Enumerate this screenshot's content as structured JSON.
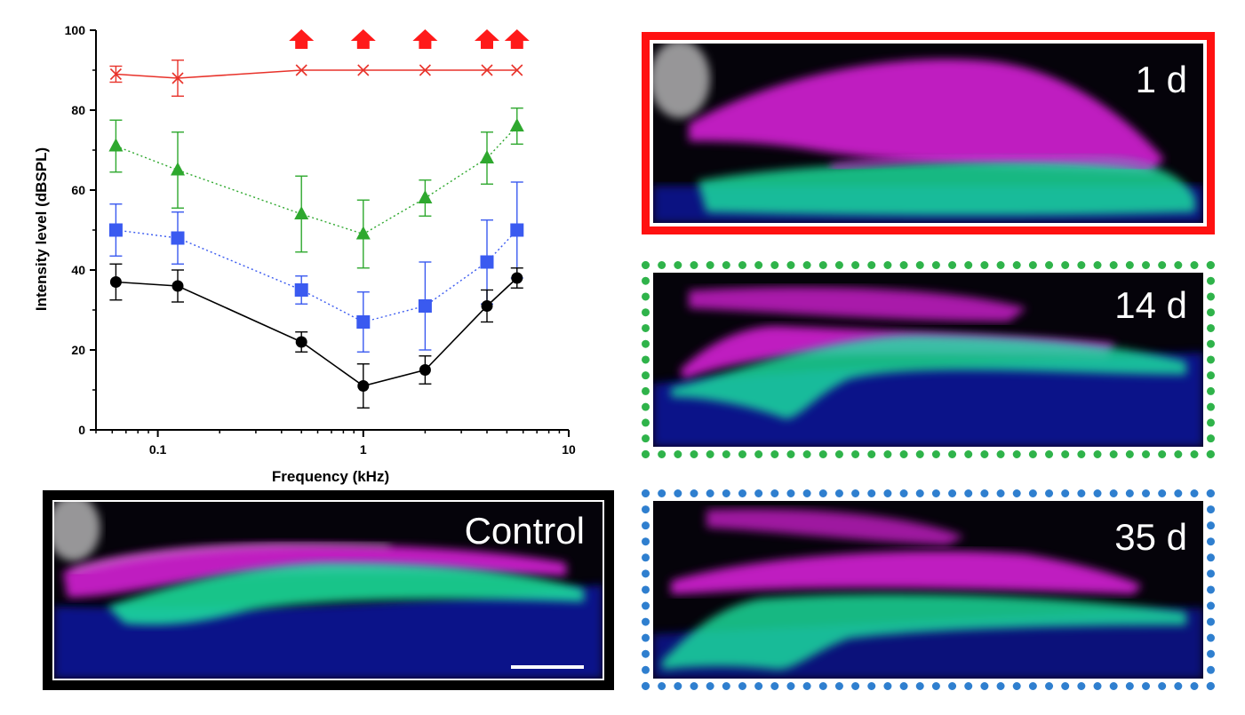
{
  "chart_data": {
    "type": "line",
    "xlabel": "Frequency (kHz)",
    "ylabel": "Intensity level (dBSPL)",
    "xscale": "log",
    "xlim": [
      0.05,
      10
    ],
    "ylim": [
      0,
      100
    ],
    "xticks": [
      0.1,
      1,
      10
    ],
    "xtick_labels": [
      "0.1",
      "1",
      "10"
    ],
    "yticks": [
      0,
      20,
      40,
      60,
      80,
      100
    ],
    "ytick_labels": [
      "0",
      "20",
      "40",
      "60",
      "80",
      "100"
    ],
    "x": [
      0.0625,
      0.125,
      0.5,
      1,
      2,
      4,
      5.6
    ],
    "series": [
      {
        "key": "red",
        "color": "#e8322a",
        "marker": "x",
        "line_style": "solid",
        "values": [
          89,
          88,
          90,
          90,
          90,
          90,
          90
        ],
        "errors": [
          2,
          4.5,
          0,
          0,
          0,
          0,
          0
        ]
      },
      {
        "key": "green",
        "color": "#2ea82e",
        "marker": "triangle",
        "line_style": "dotted",
        "values": [
          71,
          65,
          54,
          49,
          58,
          68,
          76
        ],
        "errors": [
          6.5,
          9.5,
          9.5,
          8.5,
          4.5,
          6.5,
          4.5
        ]
      },
      {
        "key": "blue",
        "color": "#3a5af0",
        "marker": "square",
        "line_style": "dotted",
        "values": [
          50,
          48,
          35,
          27,
          31,
          42,
          50
        ],
        "errors": [
          6.5,
          6.5,
          3.5,
          7.5,
          11,
          10.5,
          12
        ]
      },
      {
        "key": "black",
        "color": "#000000",
        "marker": "circle",
        "line_style": "solid",
        "values": [
          37,
          36,
          22,
          11,
          15,
          31,
          38
        ],
        "errors": [
          4.5,
          4,
          2.5,
          5.5,
          3.5,
          4,
          2.5
        ]
      }
    ],
    "arrow_markers": {
      "color": "#ff1a1a",
      "x": [
        0.5,
        1,
        2,
        4,
        5.6
      ]
    },
    "grid": false,
    "legend": "none"
  },
  "panels": {
    "day1": {
      "label": "1 d",
      "frame_color": "#ff1111",
      "frame_style": "solid"
    },
    "day14": {
      "label": "14 d",
      "frame_color": "#2fb34a",
      "frame_style": "dotted"
    },
    "day35": {
      "label": "35 d",
      "frame_color": "#2f7fcf",
      "frame_style": "dotted"
    },
    "control": {
      "label": "Control",
      "frame_color": "#000000",
      "frame_style": "solid"
    }
  }
}
